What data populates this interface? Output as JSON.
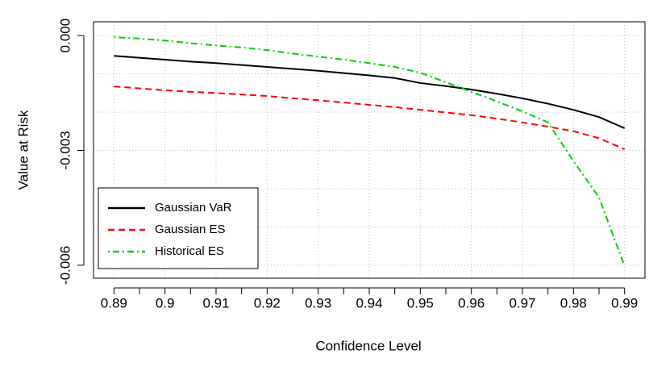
{
  "chart_data": {
    "type": "line",
    "xlabel": "Confidence Level",
    "ylabel": "Value at Risk",
    "x": [
      0.89,
      0.895,
      0.9,
      0.905,
      0.91,
      0.915,
      0.92,
      0.925,
      0.93,
      0.935,
      0.94,
      0.945,
      0.95,
      0.955,
      0.96,
      0.965,
      0.97,
      0.975,
      0.98,
      0.985,
      0.99
    ],
    "series": [
      {
        "name": "Gaussian VaR",
        "color": "#000000",
        "dash": "solid",
        "values": [
          -0.00053,
          -0.00058,
          -0.00063,
          -0.00068,
          -0.00072,
          -0.00077,
          -0.00082,
          -0.00087,
          -0.00092,
          -0.00098,
          -0.00104,
          -0.00111,
          -0.00124,
          -0.00132,
          -0.00141,
          -0.00152,
          -0.00164,
          -0.00178,
          -0.00194,
          -0.00213,
          -0.00242
        ]
      },
      {
        "name": "Gaussian ES",
        "color": "#ff0000",
        "dash": "dashed",
        "values": [
          -0.00133,
          -0.00138,
          -0.00143,
          -0.00147,
          -0.0015,
          -0.00154,
          -0.00158,
          -0.00164,
          -0.00169,
          -0.00175,
          -0.00181,
          -0.00187,
          -0.00194,
          -0.00201,
          -0.00208,
          -0.00217,
          -0.00227,
          -0.00238,
          -0.0025,
          -0.00268,
          -0.00297
        ]
      },
      {
        "name": "Historical ES",
        "color": "#00cd00",
        "dash": "dotdash",
        "values": [
          -4e-05,
          -8e-05,
          -0.00013,
          -0.0002,
          -0.00026,
          -0.00031,
          -0.00038,
          -0.00047,
          -0.00055,
          -0.00063,
          -0.00072,
          -0.00082,
          -0.00097,
          -0.00122,
          -0.00147,
          -0.00172,
          -0.00198,
          -0.00227,
          -0.00328,
          -0.00423,
          -0.00602
        ]
      }
    ],
    "xlim": [
      0.886,
      0.994
    ],
    "ylim": [
      -0.00634,
      0.00036
    ],
    "xticks": [
      0.89,
      0.9,
      0.91,
      0.92,
      0.93,
      0.94,
      0.95,
      0.96,
      0.97,
      0.98,
      0.99
    ],
    "xminorticks": [
      0.895,
      0.905,
      0.915,
      0.925,
      0.935,
      0.945,
      0.955,
      0.965,
      0.975,
      0.985
    ],
    "yticks": [
      {
        "value": 0,
        "label": "0.000"
      },
      {
        "value": -0.003,
        "label": "-0.003"
      },
      {
        "value": -0.006,
        "label": "-0.006"
      }
    ],
    "ygrid": [
      0,
      -0.001,
      -0.002,
      -0.003,
      -0.004,
      -0.005,
      -0.006
    ],
    "grid": true,
    "legend": "bottom-left"
  }
}
